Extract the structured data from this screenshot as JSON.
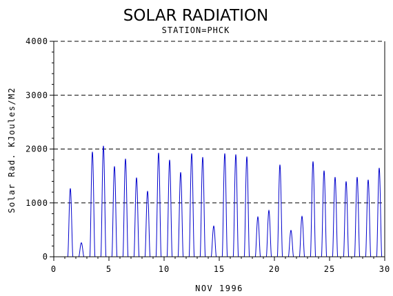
{
  "chart_data": {
    "type": "line",
    "title": "SOLAR RADIATION",
    "subtitle": "STATION=PHCK",
    "xlabel": "NOV 1996",
    "ylabel": "Solar Rad. KJoules/M2",
    "xlim": [
      0,
      30
    ],
    "ylim": [
      0,
      4000
    ],
    "x_ticks": [
      0,
      5,
      10,
      15,
      20,
      25,
      30
    ],
    "y_ticks": [
      0,
      1000,
      2000,
      3000,
      4000
    ],
    "grid": "horizontal-dashed",
    "series": [
      {
        "color": "#0000cc",
        "daily_peaks": [
          {
            "day": 1,
            "peak": 1270
          },
          {
            "day": 2,
            "peak": 260
          },
          {
            "day": 3,
            "peak": 1950
          },
          {
            "day": 4,
            "peak": 2060
          },
          {
            "day": 5,
            "peak": 1680
          },
          {
            "day": 6,
            "peak": 1820
          },
          {
            "day": 7,
            "peak": 1470
          },
          {
            "day": 8,
            "peak": 1220
          },
          {
            "day": 9,
            "peak": 1930
          },
          {
            "day": 10,
            "peak": 1800
          },
          {
            "day": 11,
            "peak": 1570
          },
          {
            "day": 12,
            "peak": 1920
          },
          {
            "day": 13,
            "peak": 1850
          },
          {
            "day": 14,
            "peak": 570
          },
          {
            "day": 15,
            "peak": 1920
          },
          {
            "day": 16,
            "peak": 1900
          },
          {
            "day": 17,
            "peak": 1860
          },
          {
            "day": 18,
            "peak": 740
          },
          {
            "day": 19,
            "peak": 860
          },
          {
            "day": 20,
            "peak": 1710
          },
          {
            "day": 21,
            "peak": 490
          },
          {
            "day": 22,
            "peak": 750
          },
          {
            "day": 23,
            "peak": 1770
          },
          {
            "day": 24,
            "peak": 1600
          },
          {
            "day": 25,
            "peak": 1480
          },
          {
            "day": 26,
            "peak": 1400
          },
          {
            "day": 27,
            "peak": 1480
          },
          {
            "day": 28,
            "peak": 1430
          },
          {
            "day": 29,
            "peak": 1650
          }
        ]
      }
    ]
  }
}
